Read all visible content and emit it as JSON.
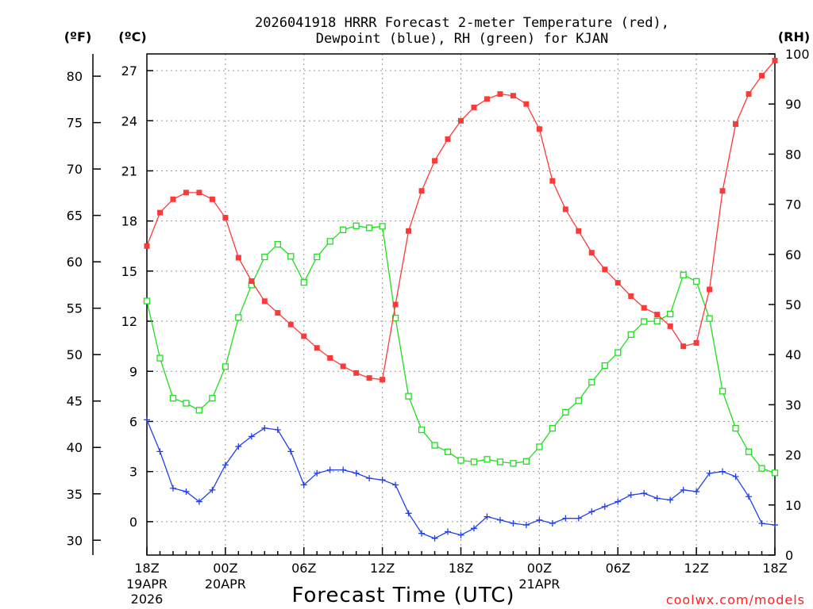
{
  "chart_data": {
    "type": "line",
    "title_line1": "2026041918 HRRR Forecast 2-meter Temperature (red),",
    "title_line2": "Dewpoint (blue), RH (green) for KJAN",
    "xlabel": "Forecast Time (UTC)",
    "credit": "coolwx.com/models",
    "left_outer_axis": {
      "unit_label": "(ºF)",
      "ticks": [
        30,
        35,
        40,
        45,
        50,
        55,
        60,
        65,
        70,
        75,
        80
      ]
    },
    "left_inner_axis": {
      "unit_label": "(ºC)",
      "ylim": [
        -2,
        28
      ],
      "ticks": [
        0,
        3,
        6,
        9,
        12,
        15,
        18,
        21,
        24,
        27
      ]
    },
    "right_axis": {
      "unit_label": "(RH)",
      "ylim": [
        0,
        100
      ],
      "ticks": [
        0,
        10,
        20,
        30,
        40,
        50,
        60,
        70,
        80,
        90,
        100
      ]
    },
    "x_hours_range": [
      0,
      48
    ],
    "x_ticks": [
      {
        "hour": 0,
        "label": "18Z",
        "sub1": "19APR",
        "sub2": "2026"
      },
      {
        "hour": 6,
        "label": "00Z",
        "sub1": "20APR",
        "sub2": ""
      },
      {
        "hour": 12,
        "label": "06Z",
        "sub1": "",
        "sub2": ""
      },
      {
        "hour": 18,
        "label": "12Z",
        "sub1": "",
        "sub2": ""
      },
      {
        "hour": 24,
        "label": "18Z",
        "sub1": "",
        "sub2": ""
      },
      {
        "hour": 30,
        "label": "00Z",
        "sub1": "21APR",
        "sub2": ""
      },
      {
        "hour": 36,
        "label": "06Z",
        "sub1": "",
        "sub2": ""
      },
      {
        "hour": 42,
        "label": "12Z",
        "sub1": "",
        "sub2": ""
      },
      {
        "hour": 48,
        "label": "18Z",
        "sub1": "",
        "sub2": ""
      }
    ],
    "series": [
      {
        "name": "2-meter Temperature (°C)",
        "color": "#ff3838",
        "marker": "filled-square",
        "axis": "celsius",
        "values": [
          16.5,
          18.5,
          19.3,
          19.7,
          19.7,
          19.3,
          18.2,
          15.8,
          14.4,
          13.2,
          12.5,
          11.8,
          11.1,
          10.4,
          9.8,
          9.3,
          8.9,
          8.6,
          8.5,
          13.0,
          17.4,
          19.8,
          21.6,
          22.9,
          24.0,
          24.8,
          25.3,
          25.6,
          25.5,
          25.0,
          23.5,
          20.4,
          18.7,
          17.4,
          16.1,
          15.1,
          14.3,
          13.5,
          12.8,
          12.4,
          11.7,
          10.5,
          10.7,
          13.9,
          19.8,
          23.8,
          25.6,
          26.7,
          27.6
        ]
      },
      {
        "name": "Dewpoint (°C)",
        "color": "#2040f0",
        "marker": "plus",
        "axis": "celsius",
        "values": [
          6.1,
          4.2,
          2.0,
          1.8,
          1.2,
          1.9,
          3.4,
          4.5,
          5.1,
          5.6,
          5.5,
          4.2,
          2.2,
          2.9,
          3.1,
          3.1,
          2.9,
          2.6,
          2.5,
          2.2,
          0.5,
          -0.7,
          -1.0,
          -0.6,
          -0.8,
          -0.4,
          0.3,
          0.1,
          -0.1,
          -0.2,
          0.1,
          -0.1,
          0.2,
          0.2,
          0.6,
          0.9,
          1.2,
          1.6,
          1.7,
          1.4,
          1.3,
          1.9,
          1.8,
          2.9,
          3.0,
          2.7,
          1.5,
          -0.1,
          -0.2
        ]
      },
      {
        "name": "RH (%)",
        "color": "#20dd20",
        "marker": "open-square",
        "axis": "rh",
        "values": [
          50.7,
          39.3,
          31.3,
          30.3,
          28.9,
          31.3,
          37.6,
          47.4,
          53.9,
          59.5,
          62.0,
          59.6,
          54.4,
          59.5,
          62.6,
          64.9,
          65.7,
          65.3,
          65.6,
          47.3,
          31.7,
          25.0,
          21.9,
          20.6,
          18.9,
          18.6,
          19.1,
          18.6,
          18.3,
          18.7,
          21.6,
          25.3,
          28.5,
          30.8,
          34.5,
          37.8,
          40.4,
          44.0,
          46.6,
          46.7,
          48.1,
          55.9,
          54.6,
          47.2,
          32.7,
          25.3,
          20.6,
          17.3,
          16.4
        ]
      }
    ]
  }
}
